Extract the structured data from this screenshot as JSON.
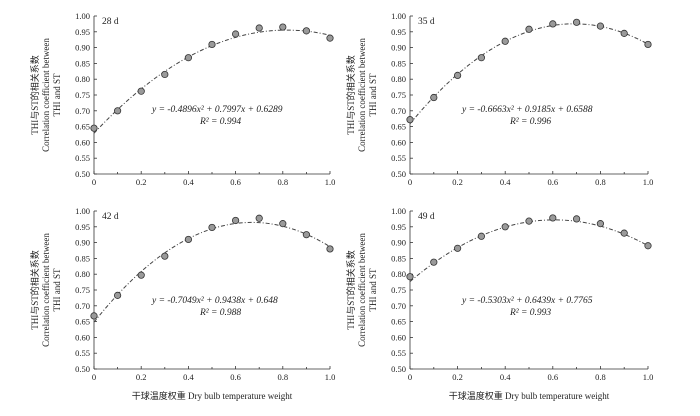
{
  "xlabel": "干球温度权重 Dry bulb temperature weight",
  "ylabel_zh": "THI与ST的相关系数",
  "ylabel_en_1": "Correlation coefficient between",
  "ylabel_en_2": "THI and ST",
  "chart_data": [
    {
      "type": "scatter",
      "panel_label": "28 d",
      "x": [
        0,
        0.1,
        0.2,
        0.3,
        0.4,
        0.5,
        0.6,
        0.7,
        0.8,
        0.9,
        1.0
      ],
      "y": [
        0.645,
        0.7,
        0.762,
        0.815,
        0.868,
        0.91,
        0.943,
        0.962,
        0.965,
        0.953,
        0.93
      ],
      "fit": {
        "a": -0.4896,
        "b": 0.7997,
        "c": 0.6289
      },
      "equation": "y = -0.4896x² + 0.7997x + 0.6289",
      "r2": "R² = 0.994",
      "xlim": [
        0,
        1.0
      ],
      "ylim": [
        0.5,
        1.0
      ],
      "xticks": [
        "0",
        "0.2",
        "0.4",
        "0.6",
        "0.8",
        "1.0"
      ],
      "yticks": [
        "0.50",
        "0.55",
        "0.60",
        "0.65",
        "0.70",
        "0.75",
        "0.80",
        "0.85",
        "0.90",
        "0.95",
        "1.00"
      ]
    },
    {
      "type": "scatter",
      "panel_label": "35 d",
      "x": [
        0,
        0.1,
        0.2,
        0.3,
        0.4,
        0.5,
        0.6,
        0.7,
        0.8,
        0.9,
        1.0
      ],
      "y": [
        0.672,
        0.742,
        0.812,
        0.868,
        0.92,
        0.958,
        0.975,
        0.98,
        0.968,
        0.945,
        0.91
      ],
      "fit": {
        "a": -0.6663,
        "b": 0.9185,
        "c": 0.6588
      },
      "equation": "y = -0.6663x² + 0.9185x + 0.6588",
      "r2": "R² = 0.996",
      "xlim": [
        0,
        1.0
      ],
      "ylim": [
        0.5,
        1.0
      ],
      "xticks": [
        "0",
        "0.2",
        "0.4",
        "0.6",
        "0.8",
        "1.0"
      ],
      "yticks": [
        "0.50",
        "0.55",
        "0.60",
        "0.65",
        "0.70",
        "0.75",
        "0.80",
        "0.85",
        "0.90",
        "0.95",
        "1.00"
      ]
    },
    {
      "type": "scatter",
      "panel_label": "42 d",
      "x": [
        0,
        0.1,
        0.2,
        0.3,
        0.4,
        0.5,
        0.6,
        0.7,
        0.8,
        0.9,
        1.0
      ],
      "y": [
        0.668,
        0.733,
        0.797,
        0.857,
        0.91,
        0.948,
        0.97,
        0.977,
        0.96,
        0.925,
        0.88
      ],
      "fit": {
        "a": -0.7049,
        "b": 0.9438,
        "c": 0.648
      },
      "equation": "y = -0.7049x² + 0.9438x + 0.648",
      "r2": "R² = 0.988",
      "xlim": [
        0,
        1.0
      ],
      "ylim": [
        0.5,
        1.0
      ],
      "xticks": [
        "0",
        "0.2",
        "0.4",
        "0.6",
        "0.8",
        "1.0"
      ],
      "yticks": [
        "0.50",
        "0.55",
        "0.60",
        "0.65",
        "0.70",
        "0.75",
        "0.80",
        "0.85",
        "0.90",
        "0.95",
        "1.00"
      ]
    },
    {
      "type": "scatter",
      "panel_label": "49 d",
      "x": [
        0,
        0.1,
        0.2,
        0.3,
        0.4,
        0.5,
        0.6,
        0.7,
        0.8,
        0.9,
        1.0
      ],
      "y": [
        0.792,
        0.838,
        0.882,
        0.92,
        0.95,
        0.968,
        0.978,
        0.975,
        0.96,
        0.93,
        0.89
      ],
      "fit": {
        "a": -0.5303,
        "b": 0.6439,
        "c": 0.7765
      },
      "equation": "y = -0.5303x² + 0.6439x + 0.7765",
      "r2": "R² = 0.993",
      "xlim": [
        0,
        1.0
      ],
      "ylim": [
        0.5,
        1.0
      ],
      "xticks": [
        "0",
        "0.2",
        "0.4",
        "0.6",
        "0.8",
        "1.0"
      ],
      "yticks": [
        "0.50",
        "0.55",
        "0.60",
        "0.65",
        "0.70",
        "0.75",
        "0.80",
        "0.85",
        "0.90",
        "0.95",
        "1.00"
      ]
    }
  ]
}
